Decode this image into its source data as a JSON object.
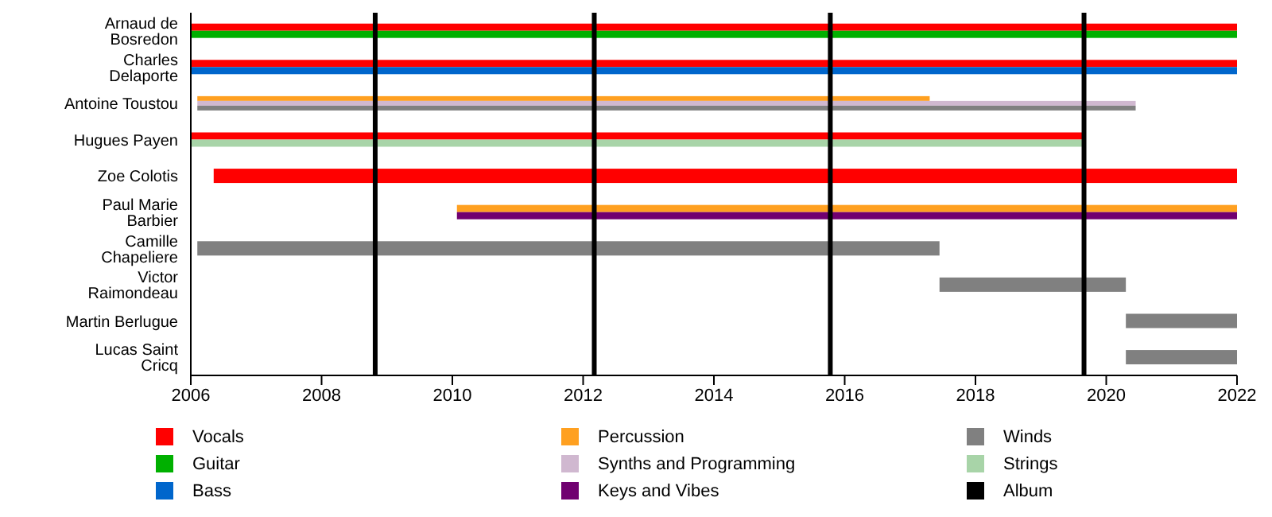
{
  "chart_data": {
    "type": "bar",
    "orientation": "horizontal",
    "categories": [
      "Arnaud de Bosredon",
      "Charles Delaporte",
      "Antoine Toustou",
      "Hugues Payen",
      "Zoe Colotis",
      "Paul Marie Barbier",
      "Camille Chapeliere",
      "Victor Raimondeau",
      "Martin Berlugue",
      "Lucas Saint Cricq"
    ],
    "series": [
      {
        "name": "Vocals",
        "color": "#ff0000",
        "base": [
          2006,
          2006,
          null,
          2006,
          2006.35,
          null,
          null,
          null,
          null,
          null
        ],
        "values": [
          16,
          16,
          null,
          13.66,
          15.65,
          null,
          null,
          null,
          null,
          null
        ]
      },
      {
        "name": "Guitar",
        "color": "#00b000",
        "base": [
          2006,
          null,
          null,
          null,
          null,
          null,
          null,
          null,
          null,
          null
        ],
        "values": [
          16,
          null,
          null,
          null,
          null,
          null,
          null,
          null,
          null,
          null
        ]
      },
      {
        "name": "Bass",
        "color": "#0066cc",
        "base": [
          null,
          2006,
          null,
          null,
          null,
          null,
          null,
          null,
          null,
          null
        ],
        "values": [
          null,
          16,
          null,
          null,
          null,
          null,
          null,
          null,
          null,
          null
        ]
      },
      {
        "name": "Percussion",
        "color": "#ffa020",
        "base": [
          null,
          null,
          2006.1,
          null,
          null,
          2010.07,
          null,
          null,
          null,
          null
        ],
        "values": [
          null,
          null,
          11.2,
          null,
          null,
          11.93,
          null,
          null,
          null,
          null
        ]
      },
      {
        "name": "Synths and Programming",
        "color": "#d0b8d0",
        "base": [
          null,
          null,
          2006.1,
          null,
          null,
          null,
          null,
          null,
          null,
          null
        ],
        "values": [
          null,
          null,
          14.35,
          null,
          null,
          null,
          null,
          null,
          null,
          null
        ]
      },
      {
        "name": "Keys and Vibes",
        "color": "#700070",
        "base": [
          null,
          null,
          null,
          null,
          null,
          2010.07,
          null,
          null,
          null,
          null
        ],
        "values": [
          null,
          null,
          null,
          null,
          null,
          11.93,
          null,
          null,
          null,
          null
        ]
      },
      {
        "name": "Winds",
        "color": "#808080",
        "base": [
          null,
          null,
          2006.1,
          null,
          null,
          null,
          2006.1,
          2017.45,
          2020.3,
          2020.3
        ],
        "values": [
          null,
          null,
          14.35,
          null,
          null,
          null,
          11.35,
          2.85,
          1.7,
          1.7
        ]
      },
      {
        "name": "Strings",
        "color": "#a8d4a8",
        "base": [
          null,
          null,
          null,
          2006,
          null,
          null,
          null,
          null,
          null,
          null
        ],
        "values": [
          null,
          null,
          null,
          13.66,
          null,
          null,
          null,
          null,
          null,
          null
        ]
      }
    ],
    "xlim": [
      2006,
      2022
    ],
    "xticks": [
      2006,
      2008,
      2010,
      2012,
      2014,
      2016,
      2018,
      2020,
      2022
    ],
    "ref_lines": [
      {
        "axis": "x",
        "value": 2008.82,
        "label": "Album",
        "color": "#000000"
      },
      {
        "axis": "x",
        "value": 2012.17,
        "color": "#000000"
      },
      {
        "axis": "x",
        "value": 2015.78,
        "color": "#000000"
      },
      {
        "axis": "x",
        "value": 2019.66,
        "color": "#000000"
      }
    ],
    "grid": false,
    "legend": "bottom"
  }
}
